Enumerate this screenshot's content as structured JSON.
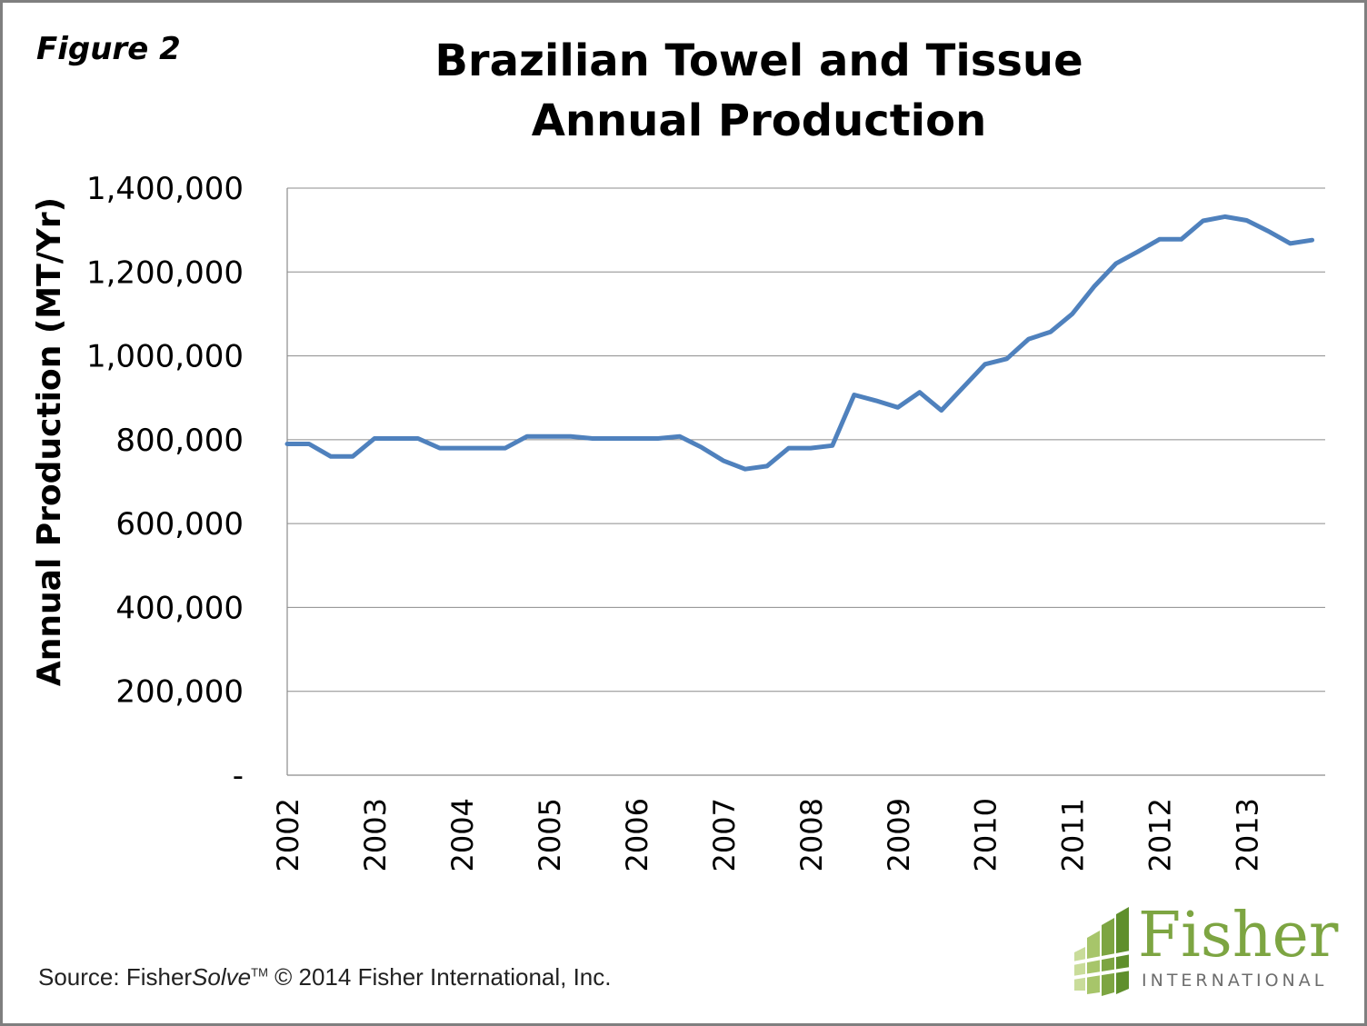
{
  "figure_label": "Figure 2",
  "source": {
    "prefix": "Source: Fisher",
    "italic": "Solve",
    "tm": "TM",
    "suffix": " © 2014 Fisher International, Inc."
  },
  "logo": {
    "name": "Fisher",
    "subtitle": "INTERNATIONAL",
    "color": "#7da542",
    "icon": "building-blocks-logo-icon"
  },
  "chart_data": {
    "type": "line",
    "title": "Brazilian Towel and Tissue Annual Production",
    "title_lines": [
      "Brazilian Towel and Tissue",
      "Annual Production"
    ],
    "xlabel": "",
    "ylabel": "Annual Production (MT/Yr)",
    "ylim": [
      0,
      1400000
    ],
    "yticks": [
      0,
      200000,
      400000,
      600000,
      800000,
      1000000,
      1200000,
      1400000
    ],
    "ytick_labels": [
      "-",
      "200,000",
      "400,000",
      "600,000",
      "800,000",
      "1,000,000",
      "1,200,000",
      "1,400,000"
    ],
    "xlim": [
      2002,
      2013.9
    ],
    "xticks": [
      2002,
      2003,
      2004,
      2005,
      2006,
      2007,
      2008,
      2009,
      2010,
      2011,
      2012,
      2013
    ],
    "xtick_labels": [
      "2002",
      "2003",
      "2004",
      "2005",
      "2006",
      "2007",
      "2008",
      "2009",
      "2010",
      "2011",
      "2012",
      "2013"
    ],
    "grid": "horizontal",
    "line_color": "#4f81bd",
    "series": [
      {
        "x": [
          2002.0,
          2002.25,
          2002.5,
          2002.75,
          2003.0,
          2003.25,
          2003.5,
          2003.75,
          2004.0,
          2004.25,
          2004.5,
          2004.75,
          2005.0,
          2005.25,
          2005.5,
          2005.75,
          2006.0,
          2006.25,
          2006.5,
          2006.75,
          2007.0,
          2007.25,
          2007.5,
          2007.75,
          2008.0,
          2008.25,
          2008.5,
          2008.75,
          2009.0,
          2009.25,
          2009.5,
          2009.75,
          2010.0,
          2010.25,
          2010.5,
          2010.75,
          2011.0,
          2011.25,
          2011.5,
          2011.75,
          2012.0,
          2012.25,
          2012.5,
          2012.75,
          2013.0,
          2013.25,
          2013.5,
          2013.75
        ],
        "values": [
          790000,
          790000,
          760000,
          760000,
          803000,
          803000,
          803000,
          780000,
          780000,
          780000,
          780000,
          808000,
          808000,
          808000,
          803000,
          803000,
          803000,
          803000,
          808000,
          782000,
          750000,
          730000,
          737000,
          780000,
          780000,
          786000,
          907000,
          893000,
          877000,
          913000,
          870000,
          925000,
          980000,
          993000,
          1040000,
          1057000,
          1100000,
          1165000,
          1220000,
          1248000,
          1278000,
          1278000,
          1322000,
          1332000,
          1323000,
          1297000,
          1268000,
          1276000
        ]
      }
    ]
  }
}
